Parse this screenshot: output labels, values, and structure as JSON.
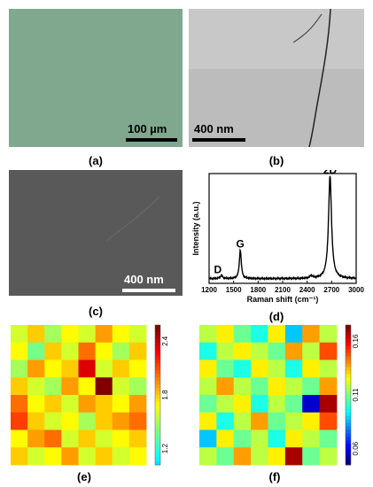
{
  "panels": {
    "a": {
      "label": "(a)",
      "scale_bar": "100 µm",
      "bg": "#7fa88f"
    },
    "b": {
      "label": "(b)",
      "scale_bar": "400 nm",
      "bg": "#bcbcbc"
    },
    "c": {
      "label": "(c)",
      "scale_bar": "400 nm",
      "bg": "#595959"
    },
    "d": {
      "label": "(d)"
    },
    "e": {
      "label": "(e)"
    },
    "f": {
      "label": "(f)"
    }
  },
  "chart_data": [
    {
      "type": "line",
      "xlabel": "Raman shift (cm⁻¹)",
      "ylabel": "Intensity (a.u.)",
      "xlim": [
        1200,
        3000
      ],
      "xticks": [
        1200,
        1500,
        1800,
        2100,
        2400,
        2700,
        3000
      ],
      "peaks": [
        {
          "name": "D",
          "x": 1350,
          "y": 0.03
        },
        {
          "name": "G",
          "x": 1582,
          "y": 0.28
        },
        {
          "name": "2D",
          "x": 2680,
          "y": 1.0
        }
      ],
      "grid": false,
      "color": "#000000"
    },
    {
      "type": "heatmap",
      "rows": 8,
      "cols": 8,
      "colorbar_ticks": [
        "1.2",
        "1.8",
        "2.4"
      ],
      "vmin": 1.1,
      "vmax": 2.5,
      "values": [
        [
          1.6,
          1.8,
          1.5,
          1.7,
          1.6,
          1.9,
          1.7,
          1.6
        ],
        [
          1.7,
          1.4,
          1.8,
          1.6,
          2.0,
          1.7,
          1.5,
          1.8
        ],
        [
          1.5,
          1.9,
          1.7,
          1.8,
          2.3,
          1.6,
          1.8,
          1.7
        ],
        [
          1.8,
          1.6,
          1.5,
          1.9,
          1.7,
          2.5,
          1.6,
          1.5
        ],
        [
          2.0,
          1.7,
          1.8,
          1.6,
          1.9,
          1.8,
          1.7,
          1.9
        ],
        [
          2.1,
          1.8,
          1.6,
          1.7,
          1.5,
          1.8,
          1.9,
          2.0
        ],
        [
          1.7,
          1.9,
          2.0,
          1.6,
          1.8,
          1.6,
          1.7,
          1.8
        ],
        [
          1.8,
          1.6,
          1.7,
          1.9,
          1.6,
          1.8,
          1.6,
          1.7
        ]
      ]
    },
    {
      "type": "heatmap",
      "rows": 8,
      "cols": 8,
      "colorbar_ticks": [
        "0.06",
        "0.11",
        "0.16"
      ],
      "vmin": 0.05,
      "vmax": 0.175,
      "values": [
        [
          0.12,
          0.13,
          0.11,
          0.1,
          0.13,
          0.09,
          0.14,
          0.12
        ],
        [
          0.1,
          0.12,
          0.13,
          0.12,
          0.11,
          0.14,
          0.12,
          0.15
        ],
        [
          0.13,
          0.11,
          0.1,
          0.13,
          0.12,
          0.1,
          0.13,
          0.12
        ],
        [
          0.12,
          0.14,
          0.12,
          0.11,
          0.13,
          0.12,
          0.11,
          0.14
        ],
        [
          0.11,
          0.12,
          0.13,
          0.1,
          0.12,
          0.11,
          0.06,
          0.17
        ],
        [
          0.13,
          0.1,
          0.12,
          0.14,
          0.11,
          0.12,
          0.13,
          0.15
        ],
        [
          0.09,
          0.13,
          0.11,
          0.12,
          0.1,
          0.13,
          0.12,
          0.11
        ],
        [
          0.12,
          0.11,
          0.14,
          0.12,
          0.13,
          0.17,
          0.11,
          0.12
        ]
      ]
    }
  ]
}
